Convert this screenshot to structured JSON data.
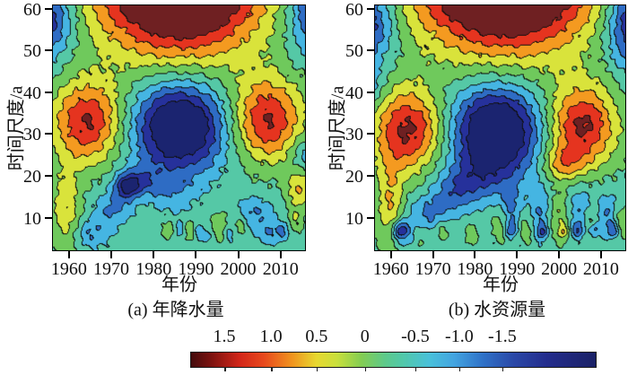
{
  "figure": {
    "background": "#ffffff"
  },
  "palette": {
    "fill_colors": [
      "#1b2470",
      "#26319b",
      "#2e6cc4",
      "#45b5e2",
      "#55c8a6",
      "#6fc95c",
      "#d9e33b",
      "#f49a20",
      "#e5341f",
      "#6f2022"
    ],
    "contour_line_color": "#101010"
  },
  "chart_data": [
    {
      "type": "heatmap",
      "panel": "a",
      "caption": "(a) 年降水量",
      "xlabel": "年份",
      "ylabel": "时间尺度/a",
      "x_range": [
        1956,
        2016
      ],
      "y_range": [
        2,
        61
      ],
      "x_ticks": [
        "1960",
        "1970",
        "1980",
        "1990",
        "2000",
        "2010"
      ],
      "y_ticks": [
        "10",
        "20",
        "30",
        "40",
        "50",
        "60"
      ],
      "level_step": 0.3,
      "level_center_range": [
        -1.5,
        1.5
      ],
      "field": {
        "base": -0.12,
        "blobs": [
          [
            1986,
            68,
            14,
            13,
            2.6
          ],
          [
            1953,
            58,
            5,
            6.5,
            -1.3
          ],
          [
            2019,
            60,
            4.5,
            7,
            -1.2
          ],
          [
            1964,
            33,
            6,
            7,
            1.35
          ],
          [
            2007,
            33.5,
            6,
            7,
            1.35
          ],
          [
            1986,
            32,
            7.5,
            7.5,
            -1.8
          ],
          [
            1984,
            16,
            4,
            3.5,
            -0.35
          ],
          [
            1959,
            12,
            2.5,
            7,
            0.65
          ],
          [
            1965,
            6,
            3,
            2.5,
            -0.5
          ],
          [
            1970,
            12,
            3,
            3,
            -0.55
          ],
          [
            1973.5,
            17.5,
            2.2,
            2.2,
            -1.05
          ],
          [
            1977,
            19,
            3,
            2.5,
            -0.5
          ],
          [
            1983.5,
            7,
            1.1,
            1.6,
            0.38
          ],
          [
            1986,
            7,
            1,
            1.4,
            -0.38
          ],
          [
            1988.5,
            7,
            1.1,
            1.9,
            0.4
          ],
          [
            1990.5,
            6.5,
            1,
            1.5,
            -0.4
          ],
          [
            1992.8,
            5.5,
            0.8,
            1.2,
            -0.35
          ],
          [
            1995.5,
            8,
            1.4,
            2.6,
            0.38
          ],
          [
            1998,
            6,
            1,
            1.4,
            -0.35
          ],
          [
            2000.5,
            8,
            1.2,
            1.8,
            0.38
          ],
          [
            2004,
            11,
            3,
            3,
            -0.5
          ],
          [
            2008,
            6,
            2,
            2,
            -0.45
          ],
          [
            2011,
            7,
            1.2,
            1.6,
            -0.4
          ],
          [
            2013.5,
            9,
            1.3,
            2.2,
            0.4
          ],
          [
            2014.5,
            17,
            2.2,
            3.5,
            0.7
          ],
          [
            2016,
            25,
            2.5,
            3,
            -0.5
          ]
        ]
      }
    },
    {
      "type": "heatmap",
      "panel": "b",
      "caption": "(b) 水资源量",
      "xlabel": "年份",
      "ylabel": "时间尺度/a",
      "x_range": [
        1956,
        2016
      ],
      "y_range": [
        2,
        61
      ],
      "x_ticks": [
        "1960",
        "1970",
        "1980",
        "1990",
        "2000",
        "2010"
      ],
      "y_ticks": [
        "10",
        "20",
        "30",
        "40",
        "50",
        "60"
      ],
      "level_step": 0.3,
      "level_center_range": [
        -1.5,
        1.5
      ],
      "field": {
        "base": -0.12,
        "blobs": [
          [
            1987,
            69,
            15,
            13,
            2.7
          ],
          [
            1953,
            57,
            5,
            6.5,
            -1.2
          ],
          [
            2018,
            57,
            4.5,
            7.5,
            -1.35
          ],
          [
            1954,
            42,
            2.5,
            4,
            -0.5
          ],
          [
            1964,
            31,
            6,
            7,
            1.4
          ],
          [
            2005.5,
            32,
            6,
            7,
            1.4
          ],
          [
            1985,
            31,
            7.5,
            7.5,
            -1.8
          ],
          [
            1981,
            20,
            5,
            4,
            -0.5
          ],
          [
            1959.5,
            13,
            2.3,
            8,
            0.7
          ],
          [
            1962,
            7,
            1.2,
            1.5,
            -0.85
          ],
          [
            1963,
            6,
            3,
            2.5,
            -0.45
          ],
          [
            1969,
            11,
            3.5,
            3,
            -0.55
          ],
          [
            1975,
            16,
            4,
            3.5,
            -0.55
          ],
          [
            1966.5,
            6,
            1.3,
            2.5,
            0.38
          ],
          [
            1972,
            7,
            1.3,
            2,
            0.36
          ],
          [
            1979,
            6,
            1.2,
            2,
            0.35
          ],
          [
            1986,
            8,
            1.6,
            3,
            0.38
          ],
          [
            1988.5,
            12,
            1.8,
            4,
            -0.5
          ],
          [
            1988.5,
            7,
            1,
            1.4,
            -0.65
          ],
          [
            1992,
            7,
            1.4,
            2.5,
            0.38
          ],
          [
            1995.5,
            11,
            1.8,
            4.5,
            -0.5
          ],
          [
            1996,
            6.5,
            0.9,
            1.2,
            -0.65
          ],
          [
            2000,
            10,
            2,
            4,
            0.42
          ],
          [
            2001,
            23,
            3.5,
            3,
            0.68
          ],
          [
            2001,
            6.5,
            0.8,
            1.2,
            0.55
          ],
          [
            2005,
            12,
            2,
            4.5,
            -0.5
          ],
          [
            2004.5,
            7,
            1,
            1.3,
            -0.65
          ],
          [
            2007.5,
            9,
            1.5,
            2.5,
            0.38
          ],
          [
            2008.5,
            7,
            0.9,
            1.2,
            -0.6
          ],
          [
            2011.5,
            11,
            1.8,
            4,
            -0.5
          ],
          [
            2013,
            7,
            1,
            1.3,
            -0.65
          ],
          [
            2015,
            9,
            1.5,
            2.5,
            0.4
          ]
        ]
      }
    },
    {
      "type": "colorbar",
      "orientation": "horizontal",
      "tick_labels": [
        "1.5",
        "1.0",
        "0.5",
        "0",
        "-0.5",
        "-1.0",
        "-1.5"
      ],
      "tick_positions_pct": [
        8.4,
        19.9,
        31.1,
        43.0,
        55.4,
        66.2,
        76.8
      ],
      "gradient_stops": [
        [
          0,
          "#440c0d"
        ],
        [
          5,
          "#7c120f"
        ],
        [
          12,
          "#d22619"
        ],
        [
          18,
          "#e8491d"
        ],
        [
          25,
          "#f0941e"
        ],
        [
          31,
          "#e7d830"
        ],
        [
          36,
          "#c9df3c"
        ],
        [
          42,
          "#84cd52"
        ],
        [
          48,
          "#5dc98b"
        ],
        [
          52,
          "#52c8a7"
        ],
        [
          59,
          "#49c0da"
        ],
        [
          65,
          "#43a4e0"
        ],
        [
          72,
          "#2f72c8"
        ],
        [
          80,
          "#2a47a6"
        ],
        [
          88,
          "#232c8c"
        ],
        [
          100,
          "#1a2166"
        ]
      ]
    }
  ]
}
